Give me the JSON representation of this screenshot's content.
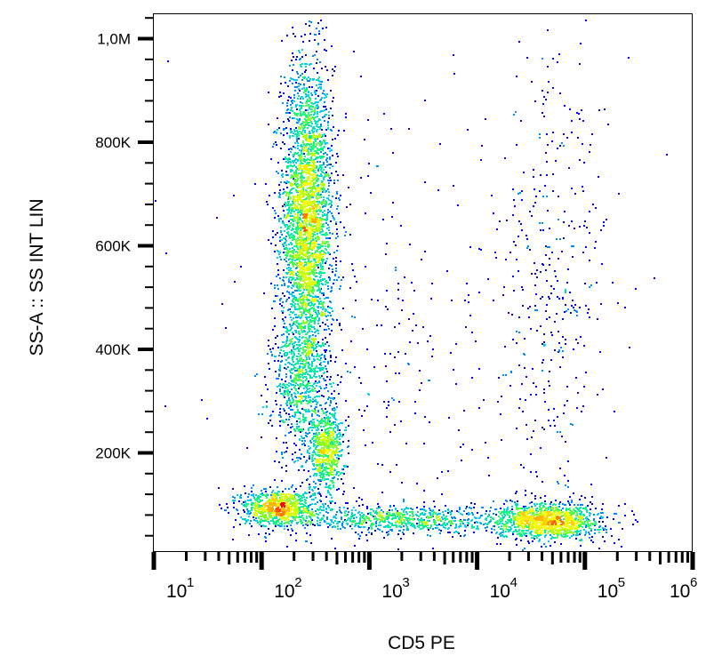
{
  "chart_data": {
    "type": "scatter",
    "subtype": "flow cytometry density dot plot",
    "xlabel": "CD5 PE",
    "ylabel": "SS-A :: SS INT LIN",
    "x_scale": "log",
    "xlim": [
      10,
      1000000
    ],
    "x_ticks": [
      {
        "base": "10",
        "exp": "1",
        "value": 10
      },
      {
        "base": "10",
        "exp": "2",
        "value": 100
      },
      {
        "base": "10",
        "exp": "3",
        "value": 1000
      },
      {
        "base": "10",
        "exp": "4",
        "value": 10000
      },
      {
        "base": "10",
        "exp": "5",
        "value": 100000
      },
      {
        "base": "10",
        "exp": "6",
        "value": 1000000
      }
    ],
    "y_scale": "linear",
    "ylim": [
      10000,
      1044000
    ],
    "y_ticks": [
      {
        "label": "200K",
        "value": 200000
      },
      {
        "label": "400K",
        "value": 400000
      },
      {
        "label": "600K",
        "value": 600000
      },
      {
        "label": "800K",
        "value": 800000
      },
      {
        "label": "1,0M",
        "value": 1000000
      }
    ],
    "grid": false,
    "colormap": [
      "#0000ff",
      "#00c8ff",
      "#00ff80",
      "#c8ff00",
      "#ffff00",
      "#ff8000",
      "#ff0000"
    ],
    "populations": [
      {
        "x_center": 260,
        "y_center": 650000,
        "x_spread_decades": 0.12,
        "y_spread": 150000,
        "events": 3400
      },
      {
        "x_center": 230,
        "y_center": 330000,
        "x_spread_decades": 0.14,
        "y_spread": 80000,
        "events": 700
      },
      {
        "x_center": 400,
        "y_center": 205000,
        "x_spread_decades": 0.08,
        "y_spread": 40000,
        "events": 600
      },
      {
        "x_center": 140,
        "y_center": 95000,
        "x_spread_decades": 0.17,
        "y_spread": 18000,
        "events": 900
      },
      {
        "x_center": 2000,
        "y_center": 72000,
        "x_spread_decades": 0.45,
        "y_spread": 14000,
        "events": 700
      },
      {
        "x_center": 45000,
        "y_center": 70000,
        "x_spread_decades": 0.25,
        "y_spread": 17000,
        "events": 1300
      },
      {
        "x_center": 50000,
        "y_center": 500000,
        "x_spread_decades": 0.25,
        "y_spread": 260000,
        "events": 380
      },
      {
        "x_center": 1500,
        "y_center": 350000,
        "x_spread_decades": 0.8,
        "y_spread": 250000,
        "events": 350
      }
    ]
  }
}
